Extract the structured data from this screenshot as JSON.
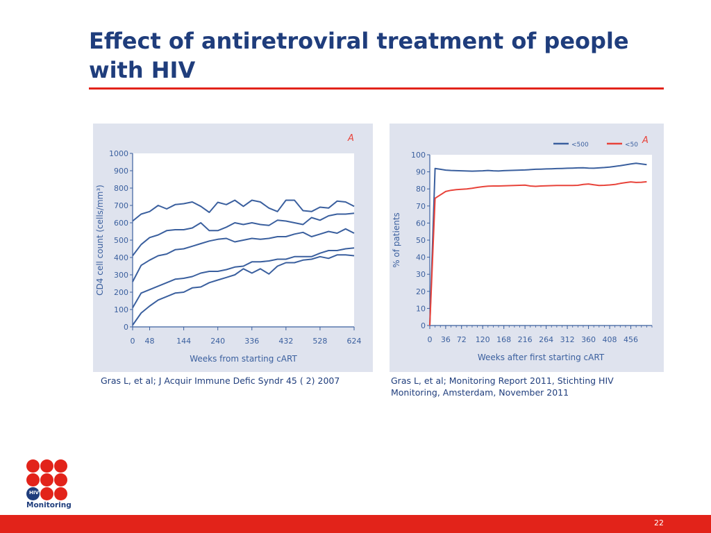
{
  "slide": {
    "title": "Effect of antiretroviral treatment of people with HIV",
    "page_number": "22",
    "logo_text": "Monitoring",
    "logo_badge": "HIV"
  },
  "captions": {
    "left": "Gras L, et al; J Acquir Immune Defic Syndr  45 ( 2) 2007",
    "right": "Gras L, et al; Monitoring Report 2011, Stichting HIV Monitoring, Amsterdam, November 2011"
  },
  "colors": {
    "title": "#1f3d7c",
    "accent": "#e2231a",
    "panel_bg": "#dfe3ee",
    "series_blue": "#3a5f9e",
    "series_red": "#e8433a",
    "plot_bg": "#ffffff"
  },
  "chart_data": [
    {
      "type": "line",
      "panel_label": "A",
      "xlabel": "Weeks from starting cART",
      "ylabel": "CD4 cell count (cells/mm³)",
      "xlim": [
        0,
        624
      ],
      "ylim": [
        0,
        1000
      ],
      "xticks": [
        0,
        48,
        144,
        240,
        336,
        432,
        528,
        624
      ],
      "yticks": [
        0,
        100,
        200,
        300,
        400,
        500,
        600,
        700,
        800,
        900,
        1000
      ],
      "x": [
        0,
        24,
        48,
        72,
        96,
        120,
        144,
        168,
        192,
        216,
        240,
        264,
        288,
        312,
        336,
        360,
        384,
        408,
        432,
        456,
        480,
        504,
        528,
        552,
        576,
        600,
        624
      ],
      "series": [
        {
          "values": [
            610,
            650,
            665,
            700,
            680,
            705,
            710,
            720,
            695,
            660,
            718,
            705,
            730,
            695,
            730,
            720,
            685,
            665,
            730,
            730,
            670,
            665,
            690,
            685,
            725,
            720,
            695
          ]
        },
        {
          "values": [
            410,
            475,
            515,
            530,
            555,
            560,
            560,
            570,
            600,
            555,
            555,
            575,
            600,
            590,
            600,
            590,
            585,
            615,
            610,
            600,
            590,
            630,
            615,
            640,
            650,
            650,
            655
          ]
        },
        {
          "values": [
            260,
            355,
            385,
            410,
            420,
            445,
            450,
            465,
            480,
            495,
            505,
            510,
            490,
            500,
            510,
            505,
            510,
            520,
            520,
            535,
            545,
            520,
            535,
            550,
            540,
            565,
            540
          ]
        },
        {
          "values": [
            110,
            195,
            215,
            235,
            255,
            275,
            280,
            290,
            310,
            320,
            320,
            330,
            345,
            350,
            375,
            375,
            380,
            390,
            390,
            405,
            405,
            405,
            425,
            440,
            440,
            450,
            455
          ]
        },
        {
          "values": [
            10,
            80,
            120,
            155,
            175,
            195,
            200,
            225,
            230,
            255,
            270,
            285,
            300,
            335,
            310,
            335,
            305,
            350,
            370,
            370,
            385,
            390,
            405,
            395,
            415,
            415,
            410
          ]
        }
      ]
    },
    {
      "type": "line",
      "panel_label": "A",
      "xlabel": "Weeks after first starting cART",
      "ylabel": "% of patients",
      "xlim": [
        0,
        504
      ],
      "ylim": [
        0,
        100
      ],
      "xticks": [
        0,
        36,
        72,
        120,
        168,
        216,
        264,
        312,
        360,
        408,
        456
      ],
      "yticks": [
        0,
        10,
        20,
        30,
        40,
        50,
        60,
        70,
        80,
        90,
        100
      ],
      "series": [
        {
          "name": "<500",
          "color": "#3a5f9e",
          "x": [
            0,
            12,
            24,
            36,
            48,
            60,
            72,
            84,
            96,
            108,
            120,
            132,
            144,
            156,
            168,
            180,
            192,
            204,
            216,
            228,
            240,
            252,
            264,
            276,
            288,
            300,
            312,
            324,
            336,
            348,
            360,
            372,
            384,
            396,
            408,
            420,
            432,
            444,
            456,
            468,
            480,
            492
          ],
          "values": [
            0,
            92,
            91.5,
            91,
            90.8,
            90.7,
            90.6,
            90.5,
            90.4,
            90.5,
            90.6,
            90.8,
            90.6,
            90.5,
            90.7,
            90.8,
            90.9,
            91,
            91.1,
            91.3,
            91.5,
            91.6,
            91.7,
            91.8,
            91.9,
            92,
            92.1,
            92.2,
            92.3,
            92.4,
            92.2,
            92.1,
            92.3,
            92.5,
            92.8,
            93.2,
            93.6,
            94.1,
            94.6,
            95,
            94.6,
            94.2
          ]
        },
        {
          "name": "<50",
          "color": "#e8433a",
          "x": [
            0,
            12,
            24,
            36,
            48,
            60,
            72,
            84,
            96,
            108,
            120,
            132,
            144,
            156,
            168,
            180,
            192,
            204,
            216,
            228,
            240,
            252,
            264,
            276,
            288,
            300,
            312,
            324,
            336,
            348,
            360,
            372,
            384,
            396,
            408,
            420,
            432,
            444,
            456,
            468,
            480,
            492
          ],
          "values": [
            0,
            74.5,
            76.5,
            78.5,
            79.2,
            79.6,
            79.8,
            80,
            80.4,
            80.9,
            81.3,
            81.6,
            81.7,
            81.7,
            81.8,
            81.9,
            82,
            82.1,
            82.2,
            81.7,
            81.5,
            81.7,
            81.8,
            81.9,
            82,
            82,
            82,
            82,
            82.1,
            82.6,
            82.9,
            82.4,
            82,
            82.1,
            82.3,
            82.6,
            83.2,
            83.7,
            84.1,
            83.8,
            83.9,
            84.2
          ]
        }
      ]
    }
  ]
}
